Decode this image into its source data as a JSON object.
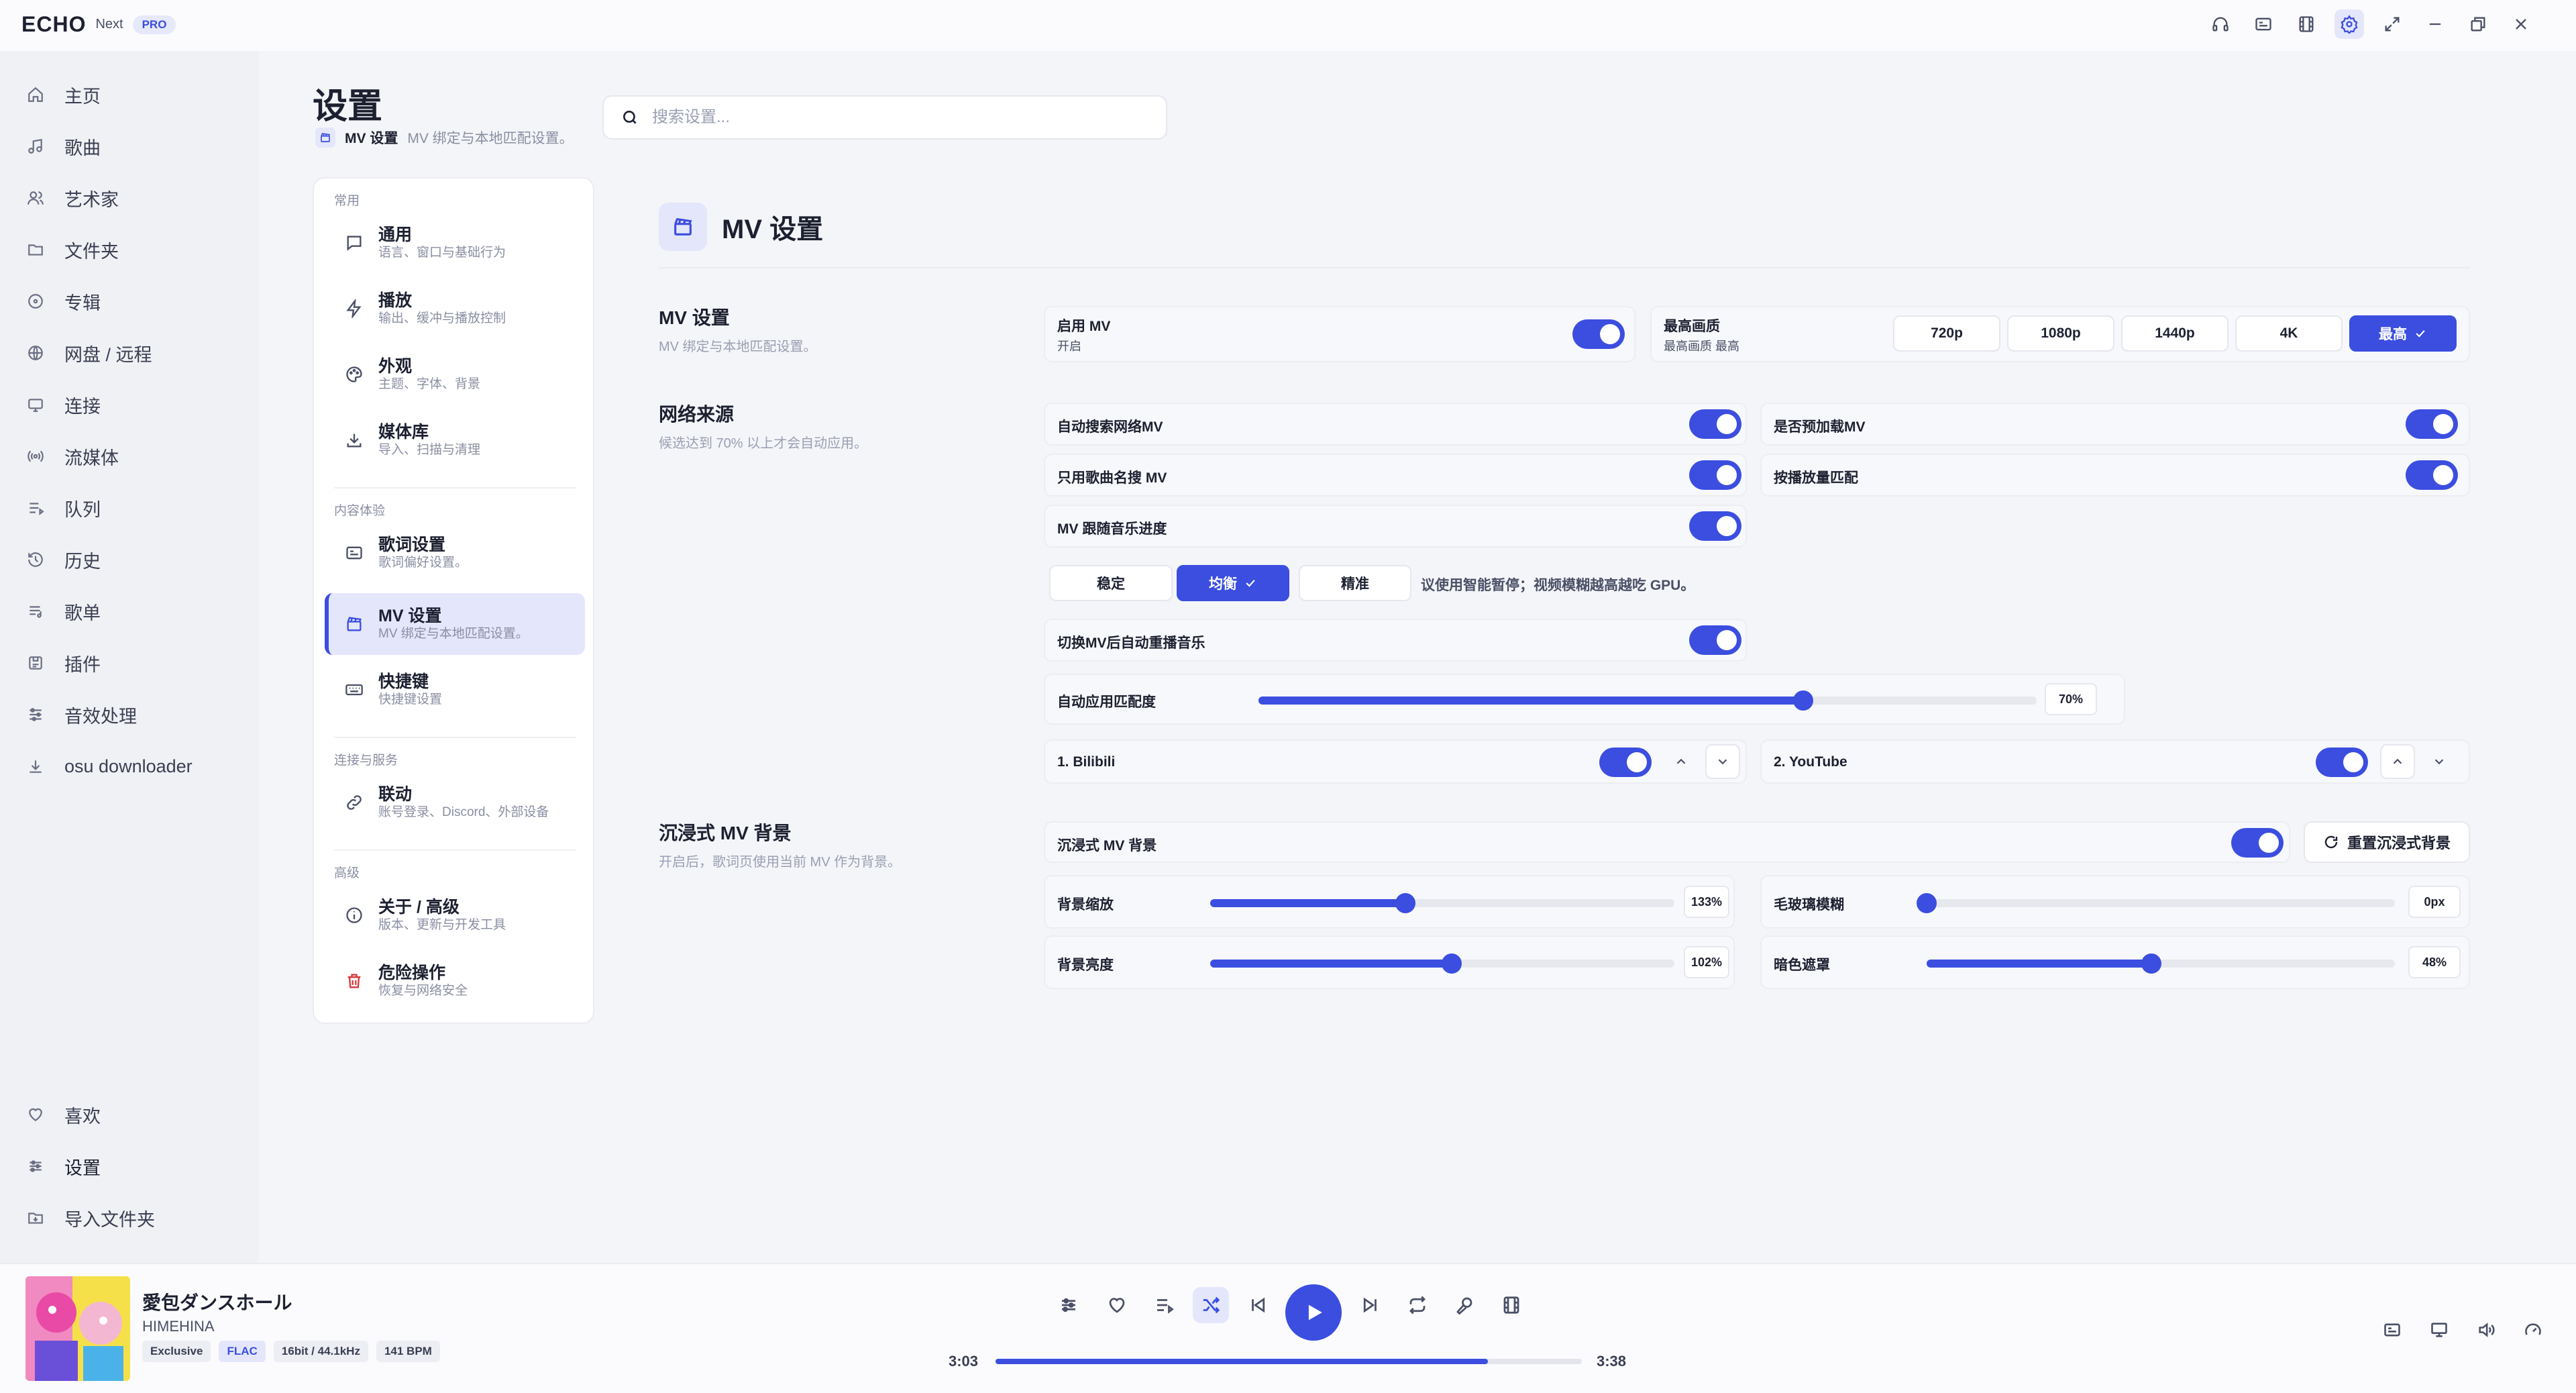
{
  "app": {
    "name": "ECHO",
    "edition": "Next",
    "badge": "PRO"
  },
  "nav": {
    "items": [
      {
        "label": "主页",
        "icon": "home-icon"
      },
      {
        "label": "歌曲",
        "icon": "music-note-icon"
      },
      {
        "label": "艺术家",
        "icon": "users-icon"
      },
      {
        "label": "文件夹",
        "icon": "folder-icon"
      },
      {
        "label": "专辑",
        "icon": "disc-icon"
      },
      {
        "label": "网盘 / 远程",
        "icon": "globe-icon"
      },
      {
        "label": "连接",
        "icon": "cast-icon"
      },
      {
        "label": "流媒体",
        "icon": "radio-icon"
      },
      {
        "label": "队列",
        "icon": "queue-icon"
      },
      {
        "label": "历史",
        "icon": "history-icon"
      },
      {
        "label": "歌单",
        "icon": "playlist-icon"
      },
      {
        "label": "插件",
        "icon": "plugin-icon"
      },
      {
        "label": "音效处理",
        "icon": "equalizer-icon"
      },
      {
        "label": "osu downloader",
        "icon": "download-icon"
      }
    ],
    "bottom": [
      {
        "label": "喜欢",
        "icon": "heart-icon"
      },
      {
        "label": "设置",
        "icon": "sliders-icon"
      },
      {
        "label": "导入文件夹",
        "icon": "folder-import-icon"
      }
    ]
  },
  "header": {
    "title": "设置",
    "current": "MV 设置",
    "current_desc": "MV 绑定与本地匹配设置。",
    "search_placeholder": "搜索设置..."
  },
  "settings_nav": {
    "groups": [
      "常用",
      "内容体验",
      "连接与服务",
      "高级"
    ],
    "items": [
      {
        "title": "通用",
        "desc": "语言、窗口与基础行为"
      },
      {
        "title": "播放",
        "desc": "输出、缓冲与播放控制"
      },
      {
        "title": "外观",
        "desc": "主题、字体、背景"
      },
      {
        "title": "媒体库",
        "desc": "导入、扫描与清理"
      },
      {
        "title": "歌词设置",
        "desc": "歌词偏好设置。"
      },
      {
        "title": "MV 设置",
        "desc": "MV 绑定与本地匹配设置。"
      },
      {
        "title": "快捷键",
        "desc": "快捷键设置"
      },
      {
        "title": "联动",
        "desc": "账号登录、Discord、外部设备"
      },
      {
        "title": "关于 / 高级",
        "desc": "版本、更新与开发工具"
      },
      {
        "title": "危险操作",
        "desc": "恢复与网络安全"
      }
    ]
  },
  "main": {
    "section_title": "MV 设置",
    "mv": {
      "title": "MV 设置",
      "desc": "MV 绑定与本地匹配设置。",
      "enable_label": "启用 MV",
      "enable_state": "开启",
      "enable_on": true,
      "quality_label": "最高画质",
      "quality_sub": "最高画质 最高",
      "quality_options": [
        "720p",
        "1080p",
        "1440p",
        "4K",
        "最高"
      ],
      "quality_selected": "最高"
    },
    "network": {
      "title": "网络来源",
      "desc": "候选达到 70% 以上才会自动应用。",
      "auto_search": "自动搜索网络MV",
      "preload": "是否预加载MV",
      "song_only": "只用歌曲名搜 MV",
      "match_by_count": "按播放量匹配",
      "follow_progress": "MV 跟随音乐进度",
      "modes": [
        "稳定",
        "均衡",
        "精准"
      ],
      "mode_selected": "均衡",
      "mode_note": "议使用智能暂停；视频模糊越高越吃 GPU。",
      "restart_music": "切换MV后自动重播音乐",
      "match_label": "自动应用匹配度",
      "match_value": 70,
      "match_text": "70%",
      "sources": [
        "1. Bilibili",
        "2. YouTube"
      ]
    },
    "immersive": {
      "title": "沉浸式 MV 背景",
      "desc": "开启后，歌词页使用当前 MV 作为背景。",
      "toggle_label": "沉浸式 MV 背景",
      "reset_label": "重置沉浸式背景",
      "scale_label": "背景缩放",
      "scale_value": 42,
      "scale_text": "133%",
      "blur_label": "毛玻璃模糊",
      "blur_value": 0,
      "blur_text": "0px",
      "brightness_label": "背景亮度",
      "brightness_value": 52,
      "brightness_text": "102%",
      "dim_label": "暗色遮罩",
      "dim_value": 48,
      "dim_text": "48%"
    }
  },
  "player": {
    "title": "愛包ダンスホール",
    "artist": "HIMEHINA",
    "tags": [
      "Exclusive",
      "FLAC",
      "16bit / 44.1kHz",
      "141 BPM"
    ],
    "elapsed": "3:03",
    "total": "3:38",
    "progress": 0.84
  },
  "colors": {
    "accent": "#3b4ee0",
    "danger": "#d63838"
  }
}
